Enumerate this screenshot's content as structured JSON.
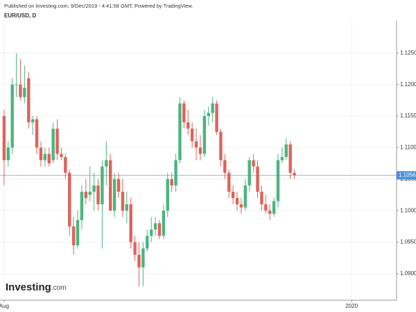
{
  "chart_data": {
    "type": "candlestick",
    "header": "Published on Investing.com, 9/Dec/2019 - 4:41:58 GMT, Powered by TradingView.",
    "title": "EUR/USD, D",
    "logo": "Investing",
    "logo_suffix": ".com",
    "up_color": "#4bb57f",
    "down_color": "#e0625a",
    "open": [
      1.115,
      1.108,
      1.11,
      1.12,
      1.12,
      1.118,
      1.121,
      1.114,
      1.1145,
      1.11,
      1.108,
      1.109,
      1.108,
      1.113,
      1.109,
      1.1085,
      1.106,
      1.0975,
      1.0945,
      1.0985,
      1.103,
      1.1025,
      1.103,
      1.104,
      1.101,
      1.107,
      1.108,
      1.1,
      1.105,
      1.103,
      1.1,
      1.101,
      1.095,
      1.093,
      1.091,
      1.094,
      1.096,
      1.097,
      1.098,
      1.096,
      1.1,
      1.105,
      1.104,
      1.108,
      1.117,
      1.114,
      1.113,
      1.111,
      1.11,
      1.109,
      1.115,
      1.1155,
      1.117,
      1.1125,
      1.108,
      1.106,
      1.103,
      1.102,
      1.101,
      1.1005,
      1.104,
      1.108,
      1.107,
      1.103,
      1.101,
      1.1,
      1.0995,
      1.1015,
      1.108,
      1.1085,
      1.1105,
      1.106
    ],
    "high": [
      1.116,
      1.111,
      1.121,
      1.125,
      1.124,
      1.123,
      1.122,
      1.115,
      1.115,
      1.111,
      1.11,
      1.11,
      1.114,
      1.1145,
      1.11,
      1.109,
      1.1065,
      1.099,
      1.1,
      1.104,
      1.105,
      1.107,
      1.106,
      1.105,
      1.108,
      1.111,
      1.109,
      1.106,
      1.106,
      1.105,
      1.103,
      1.102,
      1.096,
      1.095,
      1.095,
      1.097,
      1.099,
      1.099,
      1.0985,
      1.101,
      1.106,
      1.106,
      1.109,
      1.118,
      1.1175,
      1.116,
      1.114,
      1.113,
      1.112,
      1.116,
      1.1165,
      1.118,
      1.1175,
      1.113,
      1.109,
      1.1065,
      1.104,
      1.103,
      1.102,
      1.105,
      1.1085,
      1.109,
      1.108,
      1.104,
      1.1025,
      1.101,
      1.102,
      1.109,
      1.11,
      1.1115,
      1.111,
      1.1065
    ],
    "low": [
      1.104,
      1.107,
      1.109,
      1.118,
      1.1175,
      1.117,
      1.113,
      1.112,
      1.109,
      1.107,
      1.107,
      1.107,
      1.1075,
      1.108,
      1.108,
      1.105,
      1.096,
      1.093,
      1.094,
      1.097,
      1.101,
      1.1015,
      1.1,
      1.1,
      1.094,
      1.104,
      1.1,
      1.099,
      1.102,
      1.099,
      1.098,
      1.094,
      1.092,
      1.088,
      1.088,
      1.0935,
      1.095,
      1.096,
      1.0955,
      1.0955,
      1.099,
      1.103,
      1.103,
      1.1075,
      1.113,
      1.112,
      1.11,
      1.108,
      1.108,
      1.1085,
      1.1135,
      1.114,
      1.112,
      1.107,
      1.105,
      1.102,
      1.101,
      1.1,
      1.0995,
      1.1,
      1.103,
      1.106,
      1.102,
      1.1,
      1.0995,
      1.0985,
      1.099,
      1.1005,
      1.1075,
      1.108,
      1.105,
      1.105
    ],
    "close": [
      1.108,
      1.11,
      1.12,
      1.12,
      1.118,
      1.1195,
      1.114,
      1.1145,
      1.11,
      1.108,
      1.109,
      1.1075,
      1.113,
      1.109,
      1.1085,
      1.106,
      1.0975,
      1.0945,
      1.0985,
      1.103,
      1.102,
      1.103,
      1.104,
      1.101,
      1.107,
      1.108,
      1.1,
      1.105,
      1.103,
      1.1,
      1.101,
      1.095,
      1.093,
      1.091,
      1.094,
      1.096,
      1.097,
      1.098,
      1.096,
      1.1,
      1.105,
      1.104,
      1.108,
      1.117,
      1.114,
      1.113,
      1.111,
      1.11,
      1.109,
      1.115,
      1.1155,
      1.117,
      1.1125,
      1.108,
      1.106,
      1.103,
      1.102,
      1.101,
      1.1005,
      1.104,
      1.108,
      1.107,
      1.103,
      1.101,
      1.1,
      1.0995,
      1.1015,
      1.108,
      1.1085,
      1.1105,
      1.106,
      1.1056
    ],
    "last_price": 1.1056,
    "last_price_color": "#4a90d9",
    "ylim": [
      1.0858,
      1.1301
    ],
    "yticks": [
      {
        "value": 1.09,
        "label": "1.0900"
      },
      {
        "value": 1.095,
        "label": "1.0950"
      },
      {
        "value": 1.1,
        "label": "1.1000"
      },
      {
        "value": 1.105,
        "label": "1.1050"
      },
      {
        "value": 1.11,
        "label": "1.1100"
      },
      {
        "value": 1.115,
        "label": "1.1150"
      },
      {
        "value": 1.12,
        "label": "1.1200"
      },
      {
        "value": 1.125,
        "label": "1.1250"
      }
    ],
    "xlim": [
      -1,
      96
    ],
    "xticks": [
      {
        "value": 0,
        "label": "Aug"
      },
      {
        "value": 85,
        "label": "2020"
      }
    ],
    "grid": true
  }
}
